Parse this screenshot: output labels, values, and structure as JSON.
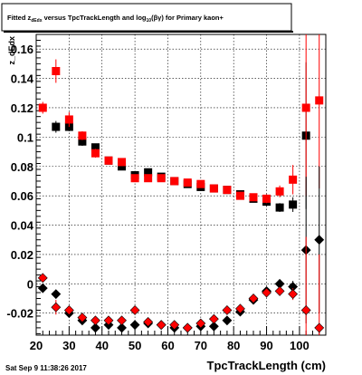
{
  "title": {
    "prefix": "Fitted  z",
    "sub": "dEdx",
    "middle": "  versus TpcTrackLength and log",
    "sub2": "10",
    "suffix": "(βγ) for Primary kaon+"
  },
  "footer": "Sat Sep  9 11:38:26 2017",
  "chart_data": {
    "type": "scatter",
    "xlabel": "TpcTrackLength (cm)",
    "ylabel": "z_dEdx",
    "xlim": [
      20,
      108
    ],
    "ylim": [
      -0.035,
      0.17
    ],
    "x_ticks": [
      20,
      30,
      40,
      50,
      60,
      70,
      80,
      90,
      100
    ],
    "y_ticks": [
      -0.02,
      0,
      0.02,
      0.04,
      0.06,
      0.08,
      0.1,
      0.12,
      0.14,
      0.16
    ],
    "y_tick_labels": [
      "-0.02",
      "0",
      "0.02",
      "0.04",
      "0.06",
      "0.08",
      "0.1",
      "0.12",
      "0.14",
      "0.16"
    ],
    "grid": true,
    "series": [
      {
        "marker": "square",
        "color": "#000000",
        "points": [
          [
            26,
            0.107
          ],
          [
            30,
            0.107
          ],
          [
            34,
            0.097
          ],
          [
            38,
            0.093
          ],
          [
            42,
            0.084
          ],
          [
            46,
            0.08
          ],
          [
            50,
            0.074
          ],
          [
            54,
            0.076
          ],
          [
            58,
            0.073
          ],
          [
            62,
            0.07
          ],
          [
            66,
            0.068
          ],
          [
            70,
            0.066
          ],
          [
            74,
            0.065
          ],
          [
            78,
            0.064
          ],
          [
            82,
            0.061
          ],
          [
            86,
            0.058
          ],
          [
            90,
            0.056
          ],
          [
            94,
            0.052
          ],
          [
            98,
            0.054
          ],
          [
            102,
            0.101
          ]
        ],
        "yerr": [
          0.004,
          0.003,
          0.003,
          0.002,
          0.002,
          0.002,
          0.002,
          0.002,
          0.002,
          0.002,
          0.002,
          0.002,
          0.002,
          0.002,
          0.002,
          0.002,
          0.003,
          0.003,
          0.005,
          0.05
        ]
      },
      {
        "marker": "square",
        "color": "#ff0000",
        "points": [
          [
            22,
            0.12
          ],
          [
            26,
            0.145
          ],
          [
            30,
            0.112
          ],
          [
            34,
            0.101
          ],
          [
            38,
            0.089
          ],
          [
            42,
            0.084
          ],
          [
            46,
            0.083
          ],
          [
            50,
            0.072
          ],
          [
            54,
            0.072
          ],
          [
            58,
            0.072
          ],
          [
            62,
            0.07
          ],
          [
            66,
            0.069
          ],
          [
            70,
            0.068
          ],
          [
            74,
            0.065
          ],
          [
            78,
            0.064
          ],
          [
            82,
            0.06
          ],
          [
            86,
            0.059
          ],
          [
            90,
            0.058
          ],
          [
            94,
            0.063
          ],
          [
            98,
            0.071
          ],
          [
            102,
            0.12
          ],
          [
            106,
            0.125
          ]
        ],
        "yerr": [
          0.004,
          0.008,
          0.005,
          0.003,
          0.003,
          0.002,
          0.002,
          0.002,
          0.002,
          0.002,
          0.002,
          0.002,
          0.002,
          0.002,
          0.002,
          0.002,
          0.002,
          0.003,
          0.004,
          0.01,
          0.06,
          0.06
        ]
      },
      {
        "marker": "diamond",
        "color": "#000000",
        "points": [
          [
            22,
            -0.003
          ],
          [
            26,
            -0.007
          ],
          [
            30,
            -0.02
          ],
          [
            34,
            -0.025
          ],
          [
            38,
            -0.03
          ],
          [
            42,
            -0.028
          ],
          [
            46,
            -0.03
          ],
          [
            50,
            -0.028
          ],
          [
            54,
            -0.027
          ],
          [
            58,
            -0.028
          ],
          [
            62,
            -0.03
          ],
          [
            66,
            -0.03
          ],
          [
            70,
            -0.029
          ],
          [
            74,
            -0.029
          ],
          [
            78,
            -0.025
          ],
          [
            82,
            -0.019
          ],
          [
            86,
            -0.011
          ],
          [
            90,
            -0.005
          ],
          [
            94,
            0.0
          ],
          [
            98,
            -0.002
          ],
          [
            102,
            0.023
          ],
          [
            106,
            0.03
          ]
        ],
        "yerr": [
          0.002,
          0.002,
          0.003,
          0.002,
          0.002,
          0.002,
          0.002,
          0.002,
          0.002,
          0.002,
          0.002,
          0.002,
          0.002,
          0.002,
          0.002,
          0.002,
          0.002,
          0.002,
          0.003,
          0.004,
          0.05,
          0.05
        ]
      },
      {
        "marker": "diamond",
        "color": "#ff0000",
        "points": [
          [
            22,
            0.004
          ],
          [
            26,
            -0.016
          ],
          [
            30,
            -0.018
          ],
          [
            34,
            -0.023
          ],
          [
            38,
            -0.025
          ],
          [
            42,
            -0.025
          ],
          [
            46,
            -0.025
          ],
          [
            50,
            -0.018
          ],
          [
            54,
            -0.026
          ],
          [
            58,
            -0.028
          ],
          [
            62,
            -0.028
          ],
          [
            66,
            -0.03
          ],
          [
            70,
            -0.027
          ],
          [
            74,
            -0.024
          ],
          [
            78,
            -0.018
          ],
          [
            82,
            -0.017
          ],
          [
            86,
            -0.01
          ],
          [
            90,
            -0.006
          ],
          [
            94,
            -0.005
          ],
          [
            98,
            -0.007
          ],
          [
            102,
            -0.018
          ],
          [
            106,
            -0.03
          ]
        ],
        "yerr": [
          0.002,
          0.005,
          0.003,
          0.002,
          0.002,
          0.002,
          0.002,
          0.002,
          0.002,
          0.002,
          0.002,
          0.002,
          0.002,
          0.002,
          0.002,
          0.002,
          0.002,
          0.002,
          0.003,
          0.004,
          0.05,
          0.05
        ]
      }
    ]
  }
}
